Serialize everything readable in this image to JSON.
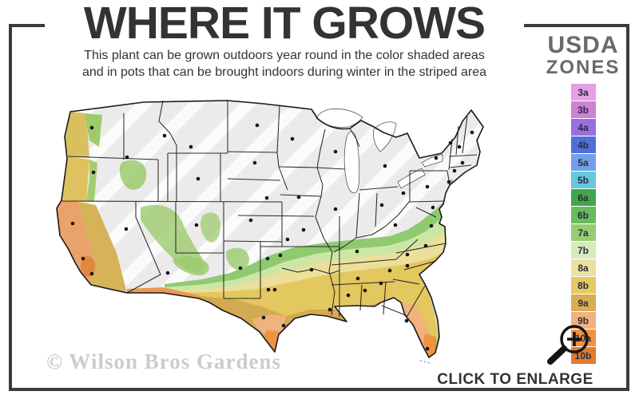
{
  "header": {
    "title": "WHERE IT GROWS",
    "subtitle_line1": "This plant can be grown outdoors year round in the color shaded areas",
    "subtitle_line2": "and in pots that can be brought indoors during winter in the striped area"
  },
  "legend": {
    "title_line1": "USDA",
    "title_line2": "ZONES",
    "zones": [
      {
        "label": "3a",
        "color": "#e3a0e2"
      },
      {
        "label": "3b",
        "color": "#cd82d4"
      },
      {
        "label": "4a",
        "color": "#9b6fe2"
      },
      {
        "label": "4b",
        "color": "#5070d8"
      },
      {
        "label": "5a",
        "color": "#72a0e8"
      },
      {
        "label": "5b",
        "color": "#64c8df"
      },
      {
        "label": "6a",
        "color": "#42a64c"
      },
      {
        "label": "6b",
        "color": "#6aba5e"
      },
      {
        "label": "7a",
        "color": "#95cd72"
      },
      {
        "label": "7b",
        "color": "#d7eabc"
      },
      {
        "label": "8a",
        "color": "#ece0a0"
      },
      {
        "label": "8b",
        "color": "#e5ca61"
      },
      {
        "label": "9a",
        "color": "#d7ae52"
      },
      {
        "label": "9b",
        "color": "#f0b27e"
      },
      {
        "label": "10a",
        "color": "#ee9440"
      },
      {
        "label": "10b",
        "color": "#e17b31"
      }
    ]
  },
  "map": {
    "kind": "usda-hardiness-zone-map-of-united-states",
    "striped_region_color": "#ebebeb"
  },
  "footer": {
    "watermark": "© Wilson Bros Gardens",
    "enlarge_label": "CLICK TO ENLARGE"
  },
  "colors": {
    "frame": "#3b3b3b",
    "title_text": "#333333",
    "legend_title": "#6a6a6a",
    "watermark": "#cccccc"
  }
}
